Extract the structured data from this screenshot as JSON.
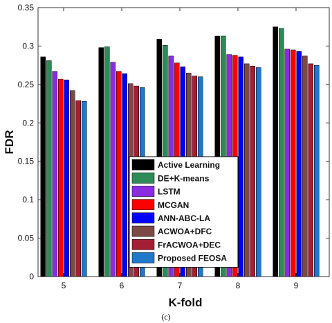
{
  "chart_data": {
    "type": "bar",
    "xlabel": "K-fold",
    "ylabel": "FDR",
    "caption": "(c)",
    "categories": [
      "5",
      "6",
      "7",
      "8",
      "9"
    ],
    "ylim": [
      0,
      0.35
    ],
    "yticks": [
      "0",
      "0.05",
      "0.1",
      "0.15",
      "0.2",
      "0.25",
      "0.3",
      "0.35"
    ],
    "legend_position": "center-bottom",
    "series": [
      {
        "name": "Active Learning",
        "color": "#000000",
        "values": [
          0.286,
          0.298,
          0.309,
          0.313,
          0.325
        ]
      },
      {
        "name": "DE+K-means",
        "color": "#2e8b57",
        "values": [
          0.281,
          0.299,
          0.301,
          0.313,
          0.323
        ]
      },
      {
        "name": "LSTM",
        "color": "#8a2be2",
        "values": [
          0.267,
          0.279,
          0.287,
          0.289,
          0.296
        ]
      },
      {
        "name": "MCGAN",
        "color": "#ff0000",
        "values": [
          0.257,
          0.267,
          0.278,
          0.288,
          0.295
        ]
      },
      {
        "name": "ANN-ABC-LA",
        "color": "#0000ff",
        "values": [
          0.256,
          0.264,
          0.273,
          0.286,
          0.293
        ]
      },
      {
        "name": "ACWOA+DFC",
        "color": "#7b4a45",
        "values": [
          0.242,
          0.251,
          0.265,
          0.277,
          0.287
        ]
      },
      {
        "name": "FrACWOA+DEC",
        "color": "#a31f34",
        "values": [
          0.229,
          0.248,
          0.261,
          0.274,
          0.277
        ]
      },
      {
        "name": "Proposed FEOSA",
        "color": "#1f78c8",
        "values": [
          0.228,
          0.246,
          0.26,
          0.272,
          0.275
        ]
      }
    ]
  }
}
